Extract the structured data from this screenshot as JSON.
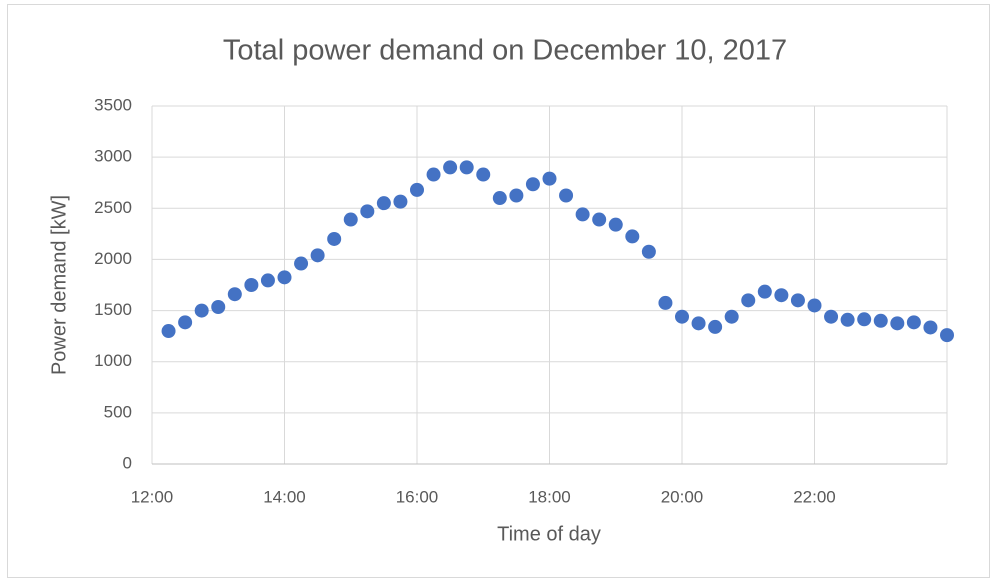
{
  "chart_data": {
    "type": "scatter",
    "title": "Total power demand on December 10, 2017",
    "x_label": "Time of day",
    "y_label": "Power demand [kW]",
    "series": [
      {
        "name": "Power demand",
        "color": "#4472c4",
        "x": [
          12.25,
          12.5,
          12.75,
          13,
          13.25,
          13.5,
          13.75,
          14,
          14.25,
          14.5,
          14.75,
          15,
          15.25,
          15.5,
          15.75,
          16,
          16.25,
          16.5,
          16.75,
          17,
          17.25,
          17.5,
          17.75,
          18,
          18.25,
          18.5,
          18.75,
          19,
          19.25,
          19.5,
          19.75,
          20,
          20.25,
          20.5,
          20.75,
          21,
          21.25,
          21.5,
          21.75,
          22,
          22.25,
          22.5,
          22.75,
          23,
          23.25,
          23.5,
          23.75,
          24
        ],
        "values": [
          1300,
          1385,
          1500,
          1535,
          1660,
          1750,
          1795,
          1825,
          1960,
          2040,
          2200,
          2390,
          2470,
          2550,
          2565,
          2680,
          2830,
          2900,
          2900,
          2830,
          2600,
          2625,
          2735,
          2790,
          2625,
          2440,
          2390,
          2340,
          2225,
          2075,
          1575,
          1440,
          1375,
          1340,
          1440,
          1600,
          1685,
          1650,
          1600,
          1550,
          1440,
          1410,
          1415,
          1400,
          1375,
          1385,
          1335,
          1260
        ]
      }
    ],
    "xlim": [
      12,
      24
    ],
    "xticks": [
      {
        "value": 12,
        "label": "12:00"
      },
      {
        "value": 14,
        "label": "14:00"
      },
      {
        "value": 16,
        "label": "16:00"
      },
      {
        "value": 18,
        "label": "18:00"
      },
      {
        "value": 20,
        "label": "20:00"
      },
      {
        "value": 22,
        "label": "22:00"
      }
    ],
    "ylim": [
      0,
      3500
    ],
    "yticks": [
      0,
      500,
      1000,
      1500,
      2000,
      2500,
      3000,
      3500
    ],
    "grid": true
  }
}
